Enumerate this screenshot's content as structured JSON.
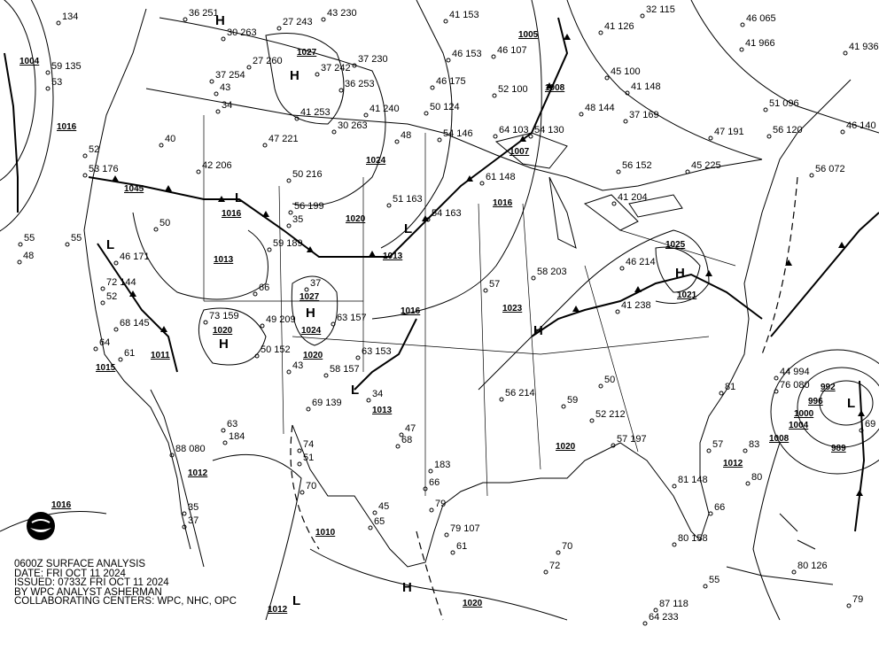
{
  "info": {
    "title": "0600Z SURFACE ANALYSIS",
    "date": "DATE: FRI OCT 11 2024",
    "issued": "ISSUED: 0733Z FRI OCT 11 2024",
    "analyst": "BY WPC ANALYST ASHERMAN",
    "centers": "COLLABORATING CENTERS: WPC, NHC, OPC"
  },
  "logo": {
    "text": "NOAA",
    "icon": "noaa-logo"
  },
  "colors": {
    "background": "#ffffff",
    "ink": "#000000"
  },
  "isobar_labels": [
    "1004",
    "1016",
    "1016",
    "1045",
    "1020",
    "1024",
    "1027",
    "1008",
    "1005",
    "1007",
    "1016",
    "1023",
    "1016",
    "1013",
    "1013",
    "1027",
    "1024",
    "1020",
    "1020",
    "1011",
    "1015",
    "1013",
    "1012",
    "1016",
    "1010",
    "1020",
    "1012",
    "1020",
    "1025",
    "1021",
    "1008",
    "1012",
    "1004",
    "989",
    "996",
    "992",
    "1000"
  ],
  "pressure_centers": [
    "H",
    "H",
    "H",
    "H",
    "H",
    "H",
    "H",
    "L",
    "L",
    "L",
    "L",
    "L",
    "L"
  ],
  "stations": [
    "134",
    "59 135",
    "53",
    "55",
    "48",
    "52",
    "53 176",
    "40",
    "50",
    "55",
    "46 171",
    "72 144",
    "52",
    "68 145",
    "64",
    "61",
    "36 251",
    "30 263",
    "27 260",
    "37 254",
    "43",
    "34",
    "42 206",
    "47 221",
    "50 216",
    "56 199",
    "35",
    "59 189",
    "37",
    "66",
    "73 159",
    "49 209",
    "63 157",
    "50 152",
    "43",
    "69 139",
    "58 157",
    "27 243",
    "43 230",
    "37 242",
    "37 230",
    "36 253",
    "41 253",
    "30 263",
    "41 240",
    "48",
    "41 153",
    "46 153",
    "46 175",
    "50 124",
    "54 146",
    "46 107",
    "52 100",
    "64 103",
    "54 130",
    "41 126",
    "32 115",
    "45 100",
    "41 148",
    "48 144",
    "37 169",
    "61 148",
    "54 163",
    "51 163",
    "57",
    "58 203",
    "56 214",
    "52 212",
    "57 197",
    "56 152",
    "41 204",
    "46 214",
    "41 238",
    "45 225",
    "47 191",
    "46 140",
    "56 072",
    "56 120",
    "51 096",
    "46 065",
    "41 966",
    "41 936",
    "44 994",
    "76 080",
    "69",
    "83",
    "80",
    "70",
    "81 148",
    "80 158",
    "80 126",
    "87 118",
    "64 233",
    "55",
    "79",
    "81",
    "66",
    "57",
    "79",
    "79 107",
    "61",
    "183",
    "66",
    "47",
    "68",
    "74",
    "51",
    "70",
    "35",
    "37",
    "88 080",
    "63",
    "184",
    "63 153",
    "34",
    "45",
    "65",
    "72",
    "59",
    "50"
  ]
}
